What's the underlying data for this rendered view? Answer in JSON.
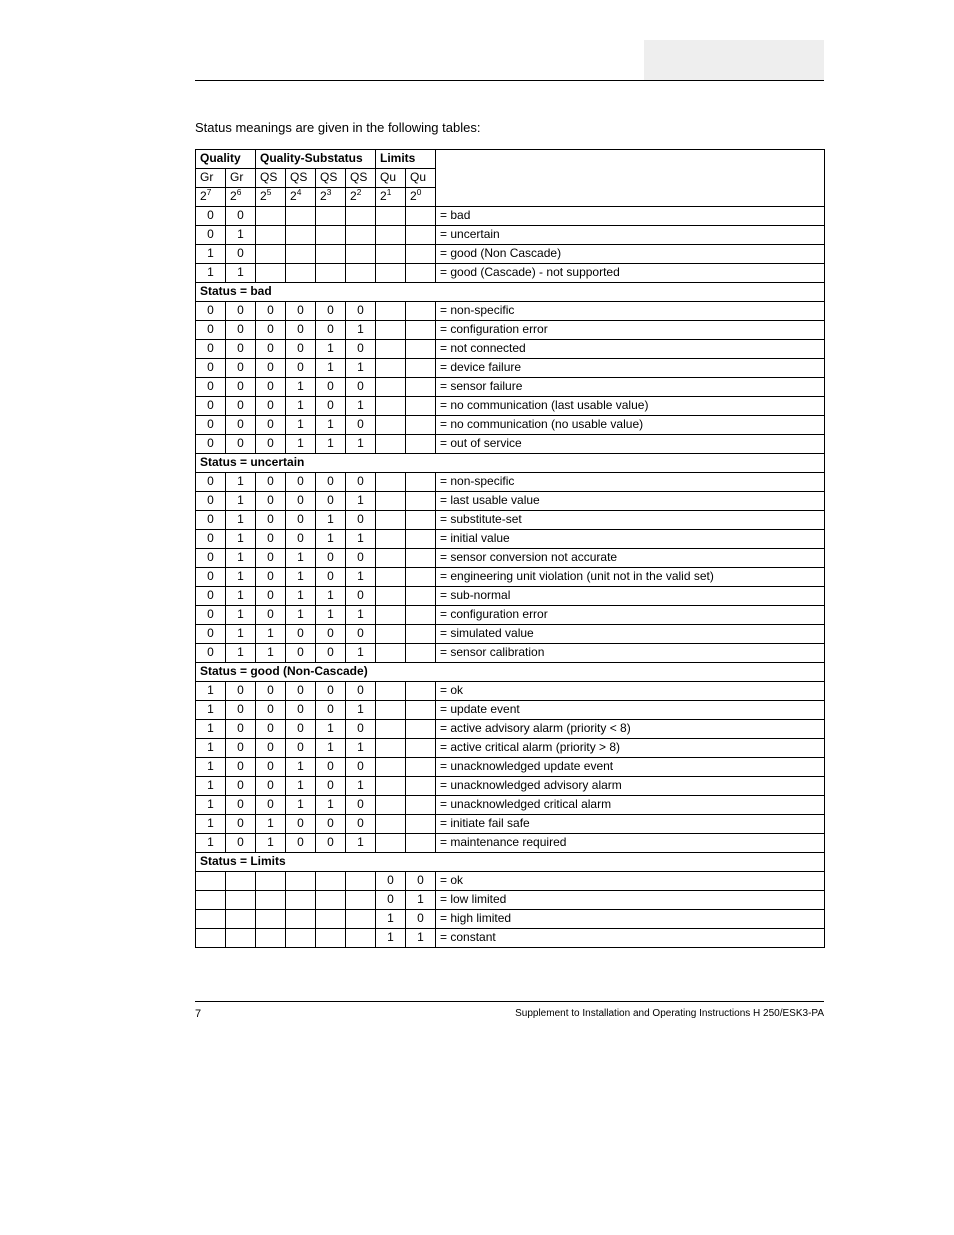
{
  "intro": "Status meanings are given in the following tables:",
  "headers": {
    "quality": "Quality",
    "substatus": "Quality-Substatus",
    "limits": "Limits",
    "gr": "Gr",
    "qs": "QS",
    "qu": "Qu"
  },
  "sections": {
    "bad": "Status = bad",
    "uncertain": "Status = uncertain",
    "good": "Status = good (Non-Cascade)",
    "limits": "Status = Limits"
  },
  "rows_top": [
    {
      "b": [
        "0",
        "0",
        "",
        "",
        "",
        "",
        "",
        ""
      ],
      "d": "= bad"
    },
    {
      "b": [
        "0",
        "1",
        "",
        "",
        "",
        "",
        "",
        ""
      ],
      "d": "= uncertain"
    },
    {
      "b": [
        "1",
        "0",
        "",
        "",
        "",
        "",
        "",
        ""
      ],
      "d": "= good (Non Cascade)"
    },
    {
      "b": [
        "1",
        "1",
        "",
        "",
        "",
        "",
        "",
        ""
      ],
      "d": "= good (Cascade) - not supported"
    }
  ],
  "rows_bad": [
    {
      "b": [
        "0",
        "0",
        "0",
        "0",
        "0",
        "0",
        "",
        ""
      ],
      "d": "= non-specific"
    },
    {
      "b": [
        "0",
        "0",
        "0",
        "0",
        "0",
        "1",
        "",
        ""
      ],
      "d": "= configuration error"
    },
    {
      "b": [
        "0",
        "0",
        "0",
        "0",
        "1",
        "0",
        "",
        ""
      ],
      "d": "= not connected"
    },
    {
      "b": [
        "0",
        "0",
        "0",
        "0",
        "1",
        "1",
        "",
        ""
      ],
      "d": "= device failure"
    },
    {
      "b": [
        "0",
        "0",
        "0",
        "1",
        "0",
        "0",
        "",
        ""
      ],
      "d": "= sensor failure"
    },
    {
      "b": [
        "0",
        "0",
        "0",
        "1",
        "0",
        "1",
        "",
        ""
      ],
      "d": "= no communication (last usable value)"
    },
    {
      "b": [
        "0",
        "0",
        "0",
        "1",
        "1",
        "0",
        "",
        ""
      ],
      "d": "= no communication (no usable value)"
    },
    {
      "b": [
        "0",
        "0",
        "0",
        "1",
        "1",
        "1",
        "",
        ""
      ],
      "d": "= out of service"
    }
  ],
  "rows_uncertain": [
    {
      "b": [
        "0",
        "1",
        "0",
        "0",
        "0",
        "0",
        "",
        ""
      ],
      "d": "= non-specific"
    },
    {
      "b": [
        "0",
        "1",
        "0",
        "0",
        "0",
        "1",
        "",
        ""
      ],
      "d": "= last usable value"
    },
    {
      "b": [
        "0",
        "1",
        "0",
        "0",
        "1",
        "0",
        "",
        ""
      ],
      "d": "= substitute-set"
    },
    {
      "b": [
        "0",
        "1",
        "0",
        "0",
        "1",
        "1",
        "",
        ""
      ],
      "d": "= initial value"
    },
    {
      "b": [
        "0",
        "1",
        "0",
        "1",
        "0",
        "0",
        "",
        ""
      ],
      "d": "= sensor conversion not accurate"
    },
    {
      "b": [
        "0",
        "1",
        "0",
        "1",
        "0",
        "1",
        "",
        ""
      ],
      "d": "= engineering unit violation (unit not in the valid set)",
      "tall": true
    },
    {
      "b": [
        "0",
        "1",
        "0",
        "1",
        "1",
        "0",
        "",
        ""
      ],
      "d": "= sub-normal"
    },
    {
      "b": [
        "0",
        "1",
        "0",
        "1",
        "1",
        "1",
        "",
        ""
      ],
      "d": "= configuration error"
    },
    {
      "b": [
        "0",
        "1",
        "1",
        "0",
        "0",
        "0",
        "",
        ""
      ],
      "d": "= simulated value"
    },
    {
      "b": [
        "0",
        "1",
        "1",
        "0",
        "0",
        "1",
        "",
        ""
      ],
      "d": "= sensor calibration"
    }
  ],
  "rows_good": [
    {
      "b": [
        "1",
        "0",
        "0",
        "0",
        "0",
        "0",
        "",
        ""
      ],
      "d": "= ok"
    },
    {
      "b": [
        "1",
        "0",
        "0",
        "0",
        "0",
        "1",
        "",
        ""
      ],
      "d": "= update event"
    },
    {
      "b": [
        "1",
        "0",
        "0",
        "0",
        "1",
        "0",
        "",
        ""
      ],
      "d": "= active advisory alarm (priority < 8)"
    },
    {
      "b": [
        "1",
        "0",
        "0",
        "0",
        "1",
        "1",
        "",
        ""
      ],
      "d": "= active critical alarm (priority > 8)"
    },
    {
      "b": [
        "1",
        "0",
        "0",
        "1",
        "0",
        "0",
        "",
        ""
      ],
      "d": "= unacknowledged update event"
    },
    {
      "b": [
        "1",
        "0",
        "0",
        "1",
        "0",
        "1",
        "",
        ""
      ],
      "d": "= unacknowledged advisory alarm"
    },
    {
      "b": [
        "1",
        "0",
        "0",
        "1",
        "1",
        "0",
        "",
        ""
      ],
      "d": "= unacknowledged critical alarm"
    },
    {
      "b": [
        "1",
        "0",
        "1",
        "0",
        "0",
        "0",
        "",
        ""
      ],
      "d": "= initiate fail safe"
    },
    {
      "b": [
        "1",
        "0",
        "1",
        "0",
        "0",
        "1",
        "",
        ""
      ],
      "d": "= maintenance required"
    }
  ],
  "rows_limits": [
    {
      "b": [
        "",
        "",
        "",
        "",
        "",
        "",
        "0",
        "0"
      ],
      "d": "= ok"
    },
    {
      "b": [
        "",
        "",
        "",
        "",
        "",
        "",
        "0",
        "1"
      ],
      "d": "= low limited"
    },
    {
      "b": [
        "",
        "",
        "",
        "",
        "",
        "",
        "1",
        "0"
      ],
      "d": "= high limited"
    },
    {
      "b": [
        "",
        "",
        "",
        "",
        "",
        "",
        "1",
        "1"
      ],
      "d": "= constant"
    }
  ],
  "footer": {
    "page": "7",
    "doc": "Supplement to Installation and Operating Instructions H 250/ESK3-PA"
  }
}
